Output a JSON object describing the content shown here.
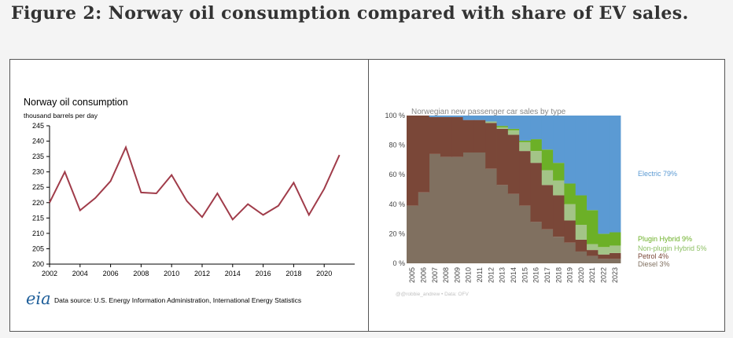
{
  "figure_title": "Figure 2: Norway oil consumption compared with share of EV sales.",
  "chart_data": [
    {
      "type": "line",
      "title": "Norway oil consumption",
      "ylabel": "thousand barrels per day",
      "xlabel": "",
      "x": [
        2002,
        2003,
        2004,
        2005,
        2006,
        2007,
        2008,
        2009,
        2010,
        2011,
        2012,
        2013,
        2014,
        2015,
        2016,
        2017,
        2018,
        2019,
        2020,
        2021
      ],
      "series": [
        {
          "name": "Norway oil consumption",
          "color": "#a03c4a",
          "values": [
            220,
            230,
            217.5,
            221.5,
            227,
            238,
            223.3,
            223,
            229,
            220.5,
            215.3,
            223,
            214.5,
            219.5,
            216,
            219,
            226.5,
            216,
            224.5,
            235.5
          ]
        }
      ],
      "xticks": [
        "2002",
        "2004",
        "2006",
        "2008",
        "2010",
        "2012",
        "2014",
        "2016",
        "2018",
        "2020"
      ],
      "yticks": [
        "200",
        "205",
        "210",
        "215",
        "220",
        "225",
        "230",
        "235",
        "240",
        "245"
      ],
      "ylim": [
        200,
        245
      ],
      "xlim": [
        2002,
        2022
      ],
      "grid": false,
      "logo": "eia",
      "source": "Data source: U.S. Energy Information Administration, International Energy Statistics"
    },
    {
      "type": "area",
      "stacked": true,
      "title": "Norwegian new passenger car sales by type",
      "categories": [
        "2005",
        "2006",
        "2007",
        "2008",
        "2009",
        "2010",
        "2011",
        "2012",
        "2013",
        "2014",
        "2015",
        "2016",
        "2017",
        "2018",
        "2019",
        "2020",
        "2021",
        "2022",
        "2023"
      ],
      "series": [
        {
          "name": "Diesel",
          "color": "#807060",
          "values": [
            39,
            48,
            74,
            72,
            72,
            75,
            75,
            64,
            53,
            47,
            39,
            28,
            23,
            18,
            14,
            8,
            5,
            3,
            3
          ]
        },
        {
          "name": "Petrol",
          "color": "#7a4738",
          "values": [
            61,
            52,
            25,
            27,
            27,
            22,
            22,
            31,
            38,
            40,
            37,
            40,
            30,
            28,
            15,
            8,
            4,
            3,
            4
          ]
        },
        {
          "name": "Non-plugin Hybrid",
          "color": "#a3c487",
          "values": [
            0,
            0,
            0,
            0,
            0,
            0,
            0,
            1,
            1,
            3,
            6,
            8,
            10,
            10,
            11,
            10,
            4,
            5,
            5
          ]
        },
        {
          "name": "Plugin Hybrid",
          "color": "#6cb027",
          "values": [
            0,
            0,
            0,
            0,
            0,
            0,
            0,
            0,
            1,
            1,
            1,
            8,
            14,
            12,
            14,
            20,
            23,
            9,
            9
          ]
        },
        {
          "name": "Electric",
          "color": "#5b9ad3",
          "values": [
            0,
            0,
            1,
            1,
            1,
            3,
            3,
            4,
            7,
            9,
            17,
            16,
            23,
            32,
            46,
            54,
            64,
            80,
            79
          ]
        }
      ],
      "legend": [
        "Electric 79%",
        "Plugin Hybrid 9%",
        "Non-plugin Hybrid 5%",
        "Petrol 4%",
        "Diesel 3%"
      ],
      "yticks": [
        "0 %",
        "20 %",
        "40 %",
        "60 %",
        "80 %",
        "100 %"
      ],
      "ylim": [
        0,
        100
      ],
      "legend_placement": "right",
      "credit": "@@robbie_andrew • Data: OFV"
    }
  ]
}
